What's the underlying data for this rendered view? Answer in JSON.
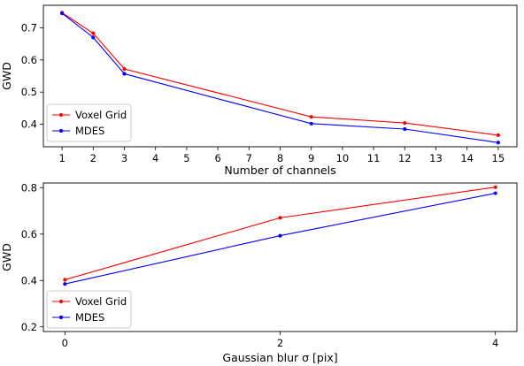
{
  "chart_data": [
    {
      "type": "line",
      "xlabel": "Number of channels",
      "ylabel": "GWD",
      "x": [
        1,
        2,
        3,
        9,
        12,
        15
      ],
      "xticks": [
        1,
        2,
        3,
        4,
        5,
        6,
        7,
        8,
        9,
        10,
        11,
        12,
        13,
        14,
        15
      ],
      "xlim": [
        0.4,
        15.6
      ],
      "yticks": [
        0.4,
        0.5,
        0.6,
        0.7
      ],
      "ylim": [
        0.33,
        0.77
      ],
      "legend_position": "lower-left",
      "grid": false,
      "series": [
        {
          "name": "Voxel Grid",
          "color": "#ff0000",
          "values": [
            0.747,
            0.683,
            0.572,
            0.423,
            0.404,
            0.366
          ]
        },
        {
          "name": "MDES",
          "color": "#0000ff",
          "values": [
            0.745,
            0.67,
            0.557,
            0.402,
            0.385,
            0.343
          ]
        }
      ]
    },
    {
      "type": "line",
      "xlabel": "Gaussian blur σ [pix]",
      "ylabel": "GWD",
      "x": [
        0,
        2,
        4
      ],
      "xticks": [
        0,
        2,
        4
      ],
      "xlim": [
        -0.2,
        4.2
      ],
      "yticks": [
        0.2,
        0.4,
        0.6,
        0.8
      ],
      "ylim": [
        0.18,
        0.82
      ],
      "legend_position": "lower-left",
      "grid": false,
      "series": [
        {
          "name": "Voxel Grid",
          "color": "#ff0000",
          "values": [
            0.403,
            0.67,
            0.802
          ]
        },
        {
          "name": "MDES",
          "color": "#0000ff",
          "values": [
            0.385,
            0.593,
            0.776
          ]
        }
      ]
    }
  ]
}
